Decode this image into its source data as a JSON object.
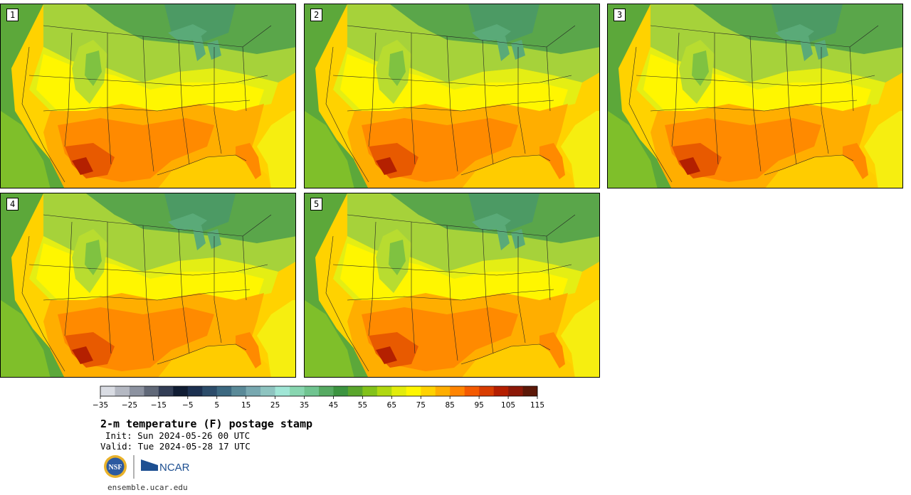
{
  "panels": [
    {
      "label": "1"
    },
    {
      "label": "2"
    },
    {
      "label": "3"
    },
    {
      "label": "4"
    },
    {
      "label": "5"
    }
  ],
  "colorbar": {
    "ticks": [
      "−35",
      "−25",
      "−15",
      "−5",
      "5",
      "15",
      "25",
      "35",
      "45",
      "55",
      "65",
      "75",
      "85",
      "95",
      "105",
      "115"
    ],
    "colors": [
      "#d9dce3",
      "#b4b8c2",
      "#8c92a0",
      "#606878",
      "#323d55",
      "#101c33",
      "#1c3050",
      "#2c4c6a",
      "#3c6880",
      "#5a8a98",
      "#78a8b0",
      "#8ec4c0",
      "#a0e6d6",
      "#88d6b0",
      "#70c490",
      "#56aa62",
      "#3c9440",
      "#5aa62c",
      "#82c21a",
      "#b0d810",
      "#e2ec0c",
      "#fff600",
      "#ffd200",
      "#ffae00",
      "#ff8400",
      "#f45a00",
      "#d83c00",
      "#b41e00",
      "#8c1808",
      "#5c1808"
    ]
  },
  "text": {
    "title": "2-m temperature (F) postage stamp",
    "init": "Init: Sun 2024-05-26 00 UTC",
    "valid": "Valid: Tue 2024-05-28 17 UTC",
    "url": "ensemble.ucar.edu",
    "nsf": "NSF",
    "ncar": "NCAR"
  }
}
